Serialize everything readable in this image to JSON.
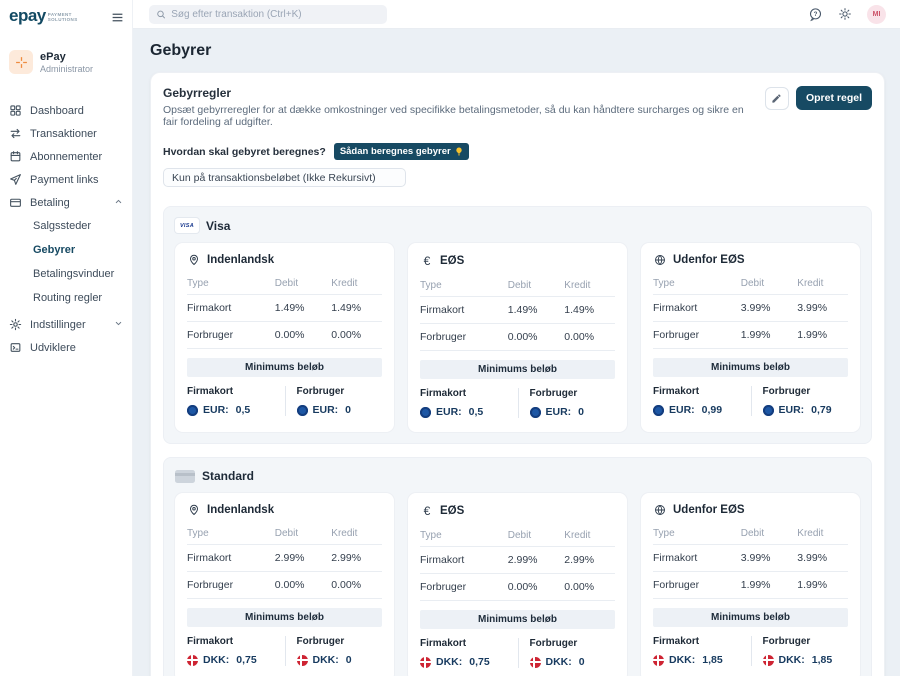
{
  "topbar": {
    "search_placeholder": "Søg efter transaktion (Ctrl+K)",
    "avatar_initials": "MI"
  },
  "sidebar": {
    "brand": "epay",
    "brand_sub1": "PAYMENT",
    "brand_sub2": "SOLUTIONS",
    "account": {
      "name": "ePay",
      "role": "Administrator"
    },
    "items": [
      {
        "label": "Dashboard",
        "icon": "dashboard-icon"
      },
      {
        "label": "Transaktioner",
        "icon": "transactions-icon"
      },
      {
        "label": "Abonnementer",
        "icon": "subscriptions-icon"
      },
      {
        "label": "Payment links",
        "icon": "payment-links-icon"
      },
      {
        "label": "Betaling",
        "icon": "payment-icon",
        "expanded": true
      },
      {
        "label": "Salgssteder"
      },
      {
        "label": "Gebyrer",
        "active": true
      },
      {
        "label": "Betalingsvinduer"
      },
      {
        "label": "Routing regler"
      },
      {
        "label": "Indstillinger",
        "icon": "settings-icon",
        "expanded": false
      },
      {
        "label": "Udviklere",
        "icon": "developers-icon"
      }
    ]
  },
  "page": {
    "title": "Gebyrer"
  },
  "panel": {
    "title": "Gebyrregler",
    "description": "Opsæt gebyrreregler for at dække omkostninger ved specifikke betalingsmetoder, så du kan håndtere surcharges og sikre en fair fordeling af udgifter.",
    "create_button": "Opret regel",
    "question": "Hvordan skal gebyret beregnes?",
    "hint_badge": "Sådan beregnes gebyrer",
    "calculation_select": "Kun på transaktionsbeløbet (Ikke Rekursivt)"
  },
  "sections": [
    {
      "title": "Visa",
      "icon": "visa-logo-icon",
      "cards": [
        {
          "title": "Indenlandsk",
          "icon": "location-pin-icon",
          "headers": [
            "Type",
            "Debit",
            "Kredit"
          ],
          "rows": [
            [
              "Firmakort",
              "1.49%",
              "1.49%"
            ],
            [
              "Forbruger",
              "0.00%",
              "0.00%"
            ]
          ],
          "minimums_title": "Minimums beløb",
          "minimums": [
            {
              "label": "Firmakort",
              "currency": "EUR:",
              "value": "0,5"
            },
            {
              "label": "Forbruger",
              "currency": "EUR:",
              "value": "0"
            }
          ]
        },
        {
          "title": "EØS",
          "icon": "euro-icon",
          "headers": [
            "Type",
            "Debit",
            "Kredit"
          ],
          "rows": [
            [
              "Firmakort",
              "1.49%",
              "1.49%"
            ],
            [
              "Forbruger",
              "0.00%",
              "0.00%"
            ]
          ],
          "minimums_title": "Minimums beløb",
          "minimums": [
            {
              "label": "Firmakort",
              "currency": "EUR:",
              "value": "0,5"
            },
            {
              "label": "Forbruger",
              "currency": "EUR:",
              "value": "0"
            }
          ]
        },
        {
          "title": "Udenfor EØS",
          "icon": "globe-icon",
          "headers": [
            "Type",
            "Debit",
            "Kredit"
          ],
          "rows": [
            [
              "Firmakort",
              "3.99%",
              "3.99%"
            ],
            [
              "Forbruger",
              "1.99%",
              "1.99%"
            ]
          ],
          "minimums_title": "Minimums beløb",
          "minimums": [
            {
              "label": "Firmakort",
              "currency": "EUR:",
              "value": "0,99"
            },
            {
              "label": "Forbruger",
              "currency": "EUR:",
              "value": "0,79"
            }
          ]
        }
      ]
    },
    {
      "title": "Standard",
      "icon": "generic-card-icon",
      "cards": [
        {
          "title": "Indenlandsk",
          "icon": "location-pin-icon",
          "headers": [
            "Type",
            "Debit",
            "Kredit"
          ],
          "rows": [
            [
              "Firmakort",
              "2.99%",
              "2.99%"
            ],
            [
              "Forbruger",
              "0.00%",
              "0.00%"
            ]
          ],
          "minimums_title": "Minimums beløb",
          "minimums": [
            {
              "label": "Firmakort",
              "currency": "DKK:",
              "value": "0,75"
            },
            {
              "label": "Forbruger",
              "currency": "DKK:",
              "value": "0"
            }
          ]
        },
        {
          "title": "EØS",
          "icon": "euro-icon",
          "headers": [
            "Type",
            "Debit",
            "Kredit"
          ],
          "rows": [
            [
              "Firmakort",
              "2.99%",
              "2.99%"
            ],
            [
              "Forbruger",
              "0.00%",
              "0.00%"
            ]
          ],
          "minimums_title": "Minimums beløb",
          "minimums": [
            {
              "label": "Firmakort",
              "currency": "DKK:",
              "value": "0,75"
            },
            {
              "label": "Forbruger",
              "currency": "DKK:",
              "value": "0"
            }
          ]
        },
        {
          "title": "Udenfor EØS",
          "icon": "globe-icon",
          "headers": [
            "Type",
            "Debit",
            "Kredit"
          ],
          "rows": [
            [
              "Firmakort",
              "3.99%",
              "3.99%"
            ],
            [
              "Forbruger",
              "1.99%",
              "1.99%"
            ]
          ],
          "minimums_title": "Minimums beløb",
          "minimums": [
            {
              "label": "Firmakort",
              "currency": "DKK:",
              "value": "1,85"
            },
            {
              "label": "Forbruger",
              "currency": "DKK:",
              "value": "1,85"
            }
          ]
        }
      ]
    }
  ],
  "colors": {
    "navy": "#174a63",
    "accent_orange": "#ef8b3f",
    "eur_coin_blue": "#1d57a5",
    "dkk_coin_red": "#ce2433",
    "content_background": "#ebf0f5"
  }
}
